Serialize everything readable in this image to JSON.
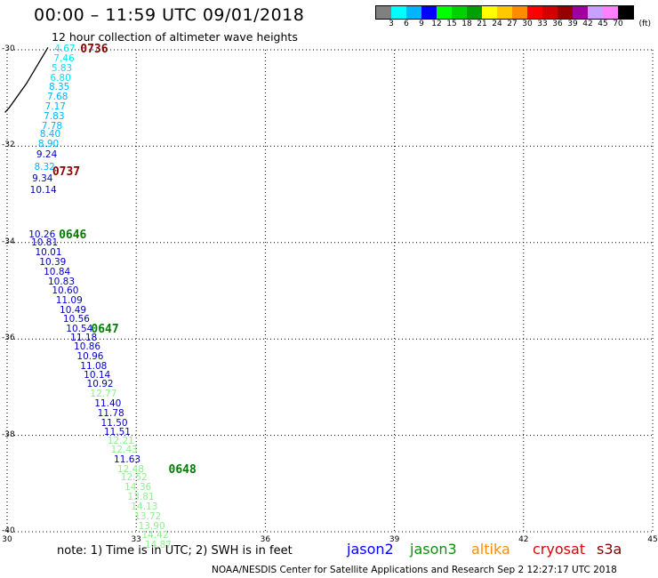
{
  "header": {
    "title": "00:00 – 11:59 UTC 09/01/2018",
    "subtitle": "12 hour collection of altimeter wave heights"
  },
  "colorbar": {
    "colors": [
      "#808080",
      "#00ffff",
      "#00b4ff",
      "#0000ff",
      "#00ff00",
      "#00d200",
      "#00a000",
      "#ffff00",
      "#ffc800",
      "#ff8c00",
      "#ff0000",
      "#d20000",
      "#960000",
      "#a000a0",
      "#c8a0ff",
      "#ff80ff",
      "#000000"
    ],
    "labels": [
      "3",
      "6",
      "9",
      "12",
      "15",
      "18",
      "21",
      "24",
      "27",
      "30",
      "33",
      "36",
      "39",
      "42",
      "45",
      "70"
    ],
    "unit": "(ft)"
  },
  "axes": {
    "lat_ticks": [
      "-30",
      "-32",
      "-34",
      "-36",
      "-38",
      "-40"
    ],
    "lon_ticks": [
      "30",
      "33",
      "36",
      "39",
      "42",
      "45"
    ]
  },
  "coastline": [
    [
      -29.95,
      30.95
    ],
    [
      -30.7,
      30.45
    ],
    [
      -31.2,
      30.05
    ],
    [
      -31.3,
      29.95
    ]
  ],
  "wave_heights": [
    {
      "lat": -30.0,
      "lon": 31.1,
      "text": "4.67",
      "color": "#00e5ee"
    },
    {
      "lat": -30.2,
      "lon": 31.08,
      "text": "7.46",
      "color": "#00e5ee"
    },
    {
      "lat": -30.4,
      "lon": 31.03,
      "text": "5.83",
      "color": "#00e5ee"
    },
    {
      "lat": -30.6,
      "lon": 31.0,
      "text": "6.80",
      "color": "#00e5ee"
    },
    {
      "lat": -30.8,
      "lon": 30.97,
      "text": "8.35",
      "color": "#00b4ff"
    },
    {
      "lat": -31.0,
      "lon": 30.93,
      "text": "7.68",
      "color": "#00b4ff"
    },
    {
      "lat": -31.2,
      "lon": 30.88,
      "text": "7.17",
      "color": "#00b4ff"
    },
    {
      "lat": -31.4,
      "lon": 30.85,
      "text": "7.83",
      "color": "#00b4ff"
    },
    {
      "lat": -31.6,
      "lon": 30.8,
      "text": "7.78",
      "color": "#00b4ff"
    },
    {
      "lat": -31.78,
      "lon": 30.76,
      "text": "8.40",
      "color": "#00b4ff"
    },
    {
      "lat": -31.97,
      "lon": 30.72,
      "text": "8.90",
      "color": "#00b4ff"
    },
    {
      "lat": -32.2,
      "lon": 30.68,
      "text": "9.24",
      "color": "#0000c8"
    },
    {
      "lat": -32.45,
      "lon": 30.63,
      "text": "8.32",
      "color": "#00b4ff"
    },
    {
      "lat": -32.7,
      "lon": 30.58,
      "text": "9.34",
      "color": "#0000c8"
    },
    {
      "lat": -32.93,
      "lon": 30.53,
      "text": "10.14",
      "color": "#0000c8"
    },
    {
      "lat": -33.85,
      "lon": 30.5,
      "text": "10.26",
      "color": "#0000c8"
    },
    {
      "lat": -34.03,
      "lon": 30.56,
      "text": "10.81",
      "color": "#0000c8"
    },
    {
      "lat": -34.22,
      "lon": 30.65,
      "text": "10.01",
      "color": "#0000c8"
    },
    {
      "lat": -34.42,
      "lon": 30.75,
      "text": "10.39",
      "color": "#0000c8"
    },
    {
      "lat": -34.63,
      "lon": 30.85,
      "text": "10.84",
      "color": "#0000c8"
    },
    {
      "lat": -34.83,
      "lon": 30.95,
      "text": "10.83",
      "color": "#0000c8"
    },
    {
      "lat": -35.02,
      "lon": 31.04,
      "text": "10.60",
      "color": "#0000c8"
    },
    {
      "lat": -35.22,
      "lon": 31.13,
      "text": "11.09",
      "color": "#0000c8"
    },
    {
      "lat": -35.42,
      "lon": 31.22,
      "text": "10.49",
      "color": "#0000c8"
    },
    {
      "lat": -35.6,
      "lon": 31.3,
      "text": "10.56",
      "color": "#0000c8"
    },
    {
      "lat": -35.82,
      "lon": 31.37,
      "text": "10.54",
      "color": "#0000c8"
    },
    {
      "lat": -36.0,
      "lon": 31.47,
      "text": "11.18",
      "color": "#0000c8"
    },
    {
      "lat": -36.18,
      "lon": 31.55,
      "text": "10.86",
      "color": "#0000c8"
    },
    {
      "lat": -36.38,
      "lon": 31.62,
      "text": "10.96",
      "color": "#0000c8"
    },
    {
      "lat": -36.58,
      "lon": 31.7,
      "text": "11.08",
      "color": "#0000c8"
    },
    {
      "lat": -36.78,
      "lon": 31.78,
      "text": "10.14",
      "color": "#0000c8"
    },
    {
      "lat": -36.96,
      "lon": 31.85,
      "text": "10.92",
      "color": "#0000c8"
    },
    {
      "lat": -37.16,
      "lon": 31.93,
      "text": "12.77",
      "color": "#90ee90"
    },
    {
      "lat": -37.36,
      "lon": 32.03,
      "text": "11.40",
      "color": "#0000c8"
    },
    {
      "lat": -37.56,
      "lon": 32.1,
      "text": "11.78",
      "color": "#0000c8"
    },
    {
      "lat": -37.76,
      "lon": 32.18,
      "text": "11.50",
      "color": "#0000c8"
    },
    {
      "lat": -37.95,
      "lon": 32.25,
      "text": "11.51",
      "color": "#0000c8"
    },
    {
      "lat": -38.13,
      "lon": 32.33,
      "text": "12.21",
      "color": "#90ee90"
    },
    {
      "lat": -38.33,
      "lon": 32.41,
      "text": "12.43",
      "color": "#90ee90"
    },
    {
      "lat": -38.52,
      "lon": 32.48,
      "text": "11.63",
      "color": "#0000c8"
    },
    {
      "lat": -38.72,
      "lon": 32.56,
      "text": "12.48",
      "color": "#90ee90"
    },
    {
      "lat": -38.9,
      "lon": 32.64,
      "text": "12.52",
      "color": "#90ee90"
    },
    {
      "lat": -39.1,
      "lon": 32.73,
      "text": "14.36",
      "color": "#90ee90"
    },
    {
      "lat": -39.3,
      "lon": 32.8,
      "text": "13.81",
      "color": "#90ee90"
    },
    {
      "lat": -39.5,
      "lon": 32.88,
      "text": "14.13",
      "color": "#90ee90"
    },
    {
      "lat": -39.7,
      "lon": 32.96,
      "text": "13.72",
      "color": "#90ee90"
    },
    {
      "lat": -39.9,
      "lon": 33.05,
      "text": "13.90",
      "color": "#90ee90"
    },
    {
      "lat": -40.1,
      "lon": 33.13,
      "text": "14.42",
      "color": "#90ee90"
    },
    {
      "lat": -40.3,
      "lon": 33.2,
      "text": "14.87",
      "color": "#90ee90"
    }
  ],
  "time_labels": [
    {
      "lat": -30.0,
      "lon": 31.7,
      "text": "0736",
      "color": "#8b0000"
    },
    {
      "lat": -32.55,
      "lon": 31.05,
      "text": "0737",
      "color": "#8b0000"
    },
    {
      "lat": -33.85,
      "lon": 31.2,
      "text": "0646",
      "color": "#007d00"
    },
    {
      "lat": -35.82,
      "lon": 31.95,
      "text": "0647",
      "color": "#007d00"
    },
    {
      "lat": -38.72,
      "lon": 33.75,
      "text": "0648",
      "color": "#007d00"
    }
  ],
  "note": "note:  1) Time is in UTC;  2) SWH is in feet",
  "satellites": [
    {
      "name": "jason2",
      "color": "#0000ff"
    },
    {
      "name": "jason3",
      "color": "#009600"
    },
    {
      "name": "altika",
      "color": "#ff8c00"
    },
    {
      "name": "cryosat",
      "color": "#dc0000"
    },
    {
      "name": "s3a",
      "color": "#800000"
    }
  ],
  "footer": "NOAA/NESDIS Center for Satellite Applications and Research    Sep  2 12:27:17 UTC 2018"
}
